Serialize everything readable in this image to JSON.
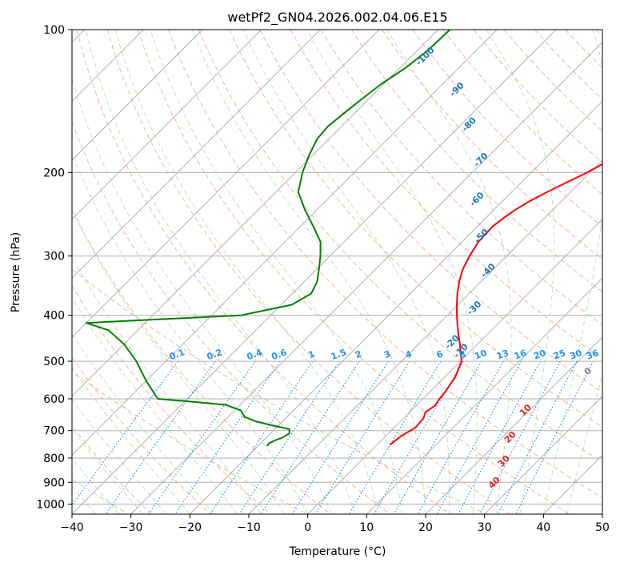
{
  "chart_data": {
    "type": "line",
    "title": "wetPf2_GN04.2026.002.04.06.E15",
    "xlabel": "Temperature (°C)",
    "ylabel": "Pressure (hPa)",
    "xlim": [
      -40,
      50
    ],
    "ylim": [
      1050,
      100
    ],
    "y_scale": "log",
    "skew": true,
    "grid": true,
    "x_ticks": [
      "−40",
      "−30",
      "−20",
      "−10",
      "0",
      "10",
      "20",
      "30",
      "40",
      "50"
    ],
    "y_ticks": [
      "100",
      "200",
      "300",
      "400",
      "500",
      "600",
      "700",
      "800",
      "900",
      "1000"
    ],
    "series": [
      {
        "name": "",
        "color": "#ff0000",
        "pressure": [
          750,
          720,
          690,
          660,
          640,
          620,
          600,
          580,
          560,
          540,
          520,
          500,
          480,
          460,
          440,
          420,
          400,
          380,
          360,
          340,
          320,
          300,
          280,
          260,
          250,
          240,
          230,
          220,
          210,
          200,
          190,
          180,
          170,
          160,
          150,
          140,
          130,
          120,
          110,
          100
        ],
        "temperature": [
          2.2,
          2.6,
          3.6,
          3.4,
          2.7,
          3.2,
          2.8,
          2.6,
          2.2,
          1.8,
          1.0,
          0.2,
          -1.4,
          -3.0,
          -4.8,
          -6.6,
          -8.4,
          -10.2,
          -12.0,
          -13.7,
          -15.2,
          -16.3,
          -17.2,
          -17.4,
          -17.0,
          -16.4,
          -15.4,
          -14.0,
          -12.3,
          -10.5,
          -9.0,
          -7.8,
          -6.8,
          -5.8,
          -4.8,
          -3.8,
          -2.9,
          -1.8,
          -0.7,
          0.2
        ]
      },
      {
        "name": "",
        "color": "#008000",
        "pressure": [
          755,
          745,
          735,
          725,
          710,
          695,
          685,
          670,
          655,
          635,
          618,
          610,
          604,
          600,
          550,
          500,
          460,
          430,
          415,
          400,
          380,
          360,
          340,
          320,
          300,
          280,
          260,
          240,
          220,
          200,
          185,
          170,
          160,
          150,
          140,
          130,
          120,
          110,
          100
        ],
        "dewpoint": [
          -18.4,
          -18.6,
          -18.1,
          -17.3,
          -16.8,
          -17.5,
          -20.4,
          -24.4,
          -27.2,
          -28.9,
          -32.4,
          -37.6,
          -42.0,
          -45.0,
          -50.0,
          -55.0,
          -60.0,
          -65.0,
          -70.0,
          -45.0,
          -38.2,
          -36.8,
          -37.8,
          -39.6,
          -41.6,
          -44.0,
          -47.8,
          -52.0,
          -56.2,
          -58.8,
          -60.5,
          -62.0,
          -62.3,
          -61.8,
          -61.2,
          -60.4,
          -59.0,
          -58.2,
          -58.0
        ]
      }
    ],
    "dry_adiabats_labels": [],
    "moist_adiabat_labels": [
      {
        "text": "-100",
        "color": "#1f77b4"
      },
      {
        "text": "-90",
        "color": "#1f77b4"
      },
      {
        "text": "-80",
        "color": "#1f77b4"
      },
      {
        "text": "-70",
        "color": "#1f77b4"
      },
      {
        "text": "-60",
        "color": "#1f77b4"
      },
      {
        "text": "-50",
        "color": "#1f77b4"
      },
      {
        "text": "-40",
        "color": "#1f77b4"
      },
      {
        "text": "-30",
        "color": "#1f77b4"
      },
      {
        "text": "-20",
        "color": "#1f77b4"
      },
      {
        "text": "-10",
        "color": "#1f77b4"
      },
      {
        "text": "0",
        "color": "#808080"
      },
      {
        "text": "10",
        "color": "#d62728"
      },
      {
        "text": "20",
        "color": "#d62728"
      },
      {
        "text": "30",
        "color": "#d62728"
      },
      {
        "text": "40",
        "color": "#d62728"
      }
    ],
    "mixing_ratio_labels": [
      "0.1",
      "0.2",
      "0.4",
      "0.6",
      "1",
      "1.5",
      "2",
      "3",
      "4",
      "6",
      "8",
      "10",
      "13",
      "16",
      "20",
      "25",
      "30",
      "36"
    ],
    "mixing_ratio_color": "#1e90ff"
  }
}
